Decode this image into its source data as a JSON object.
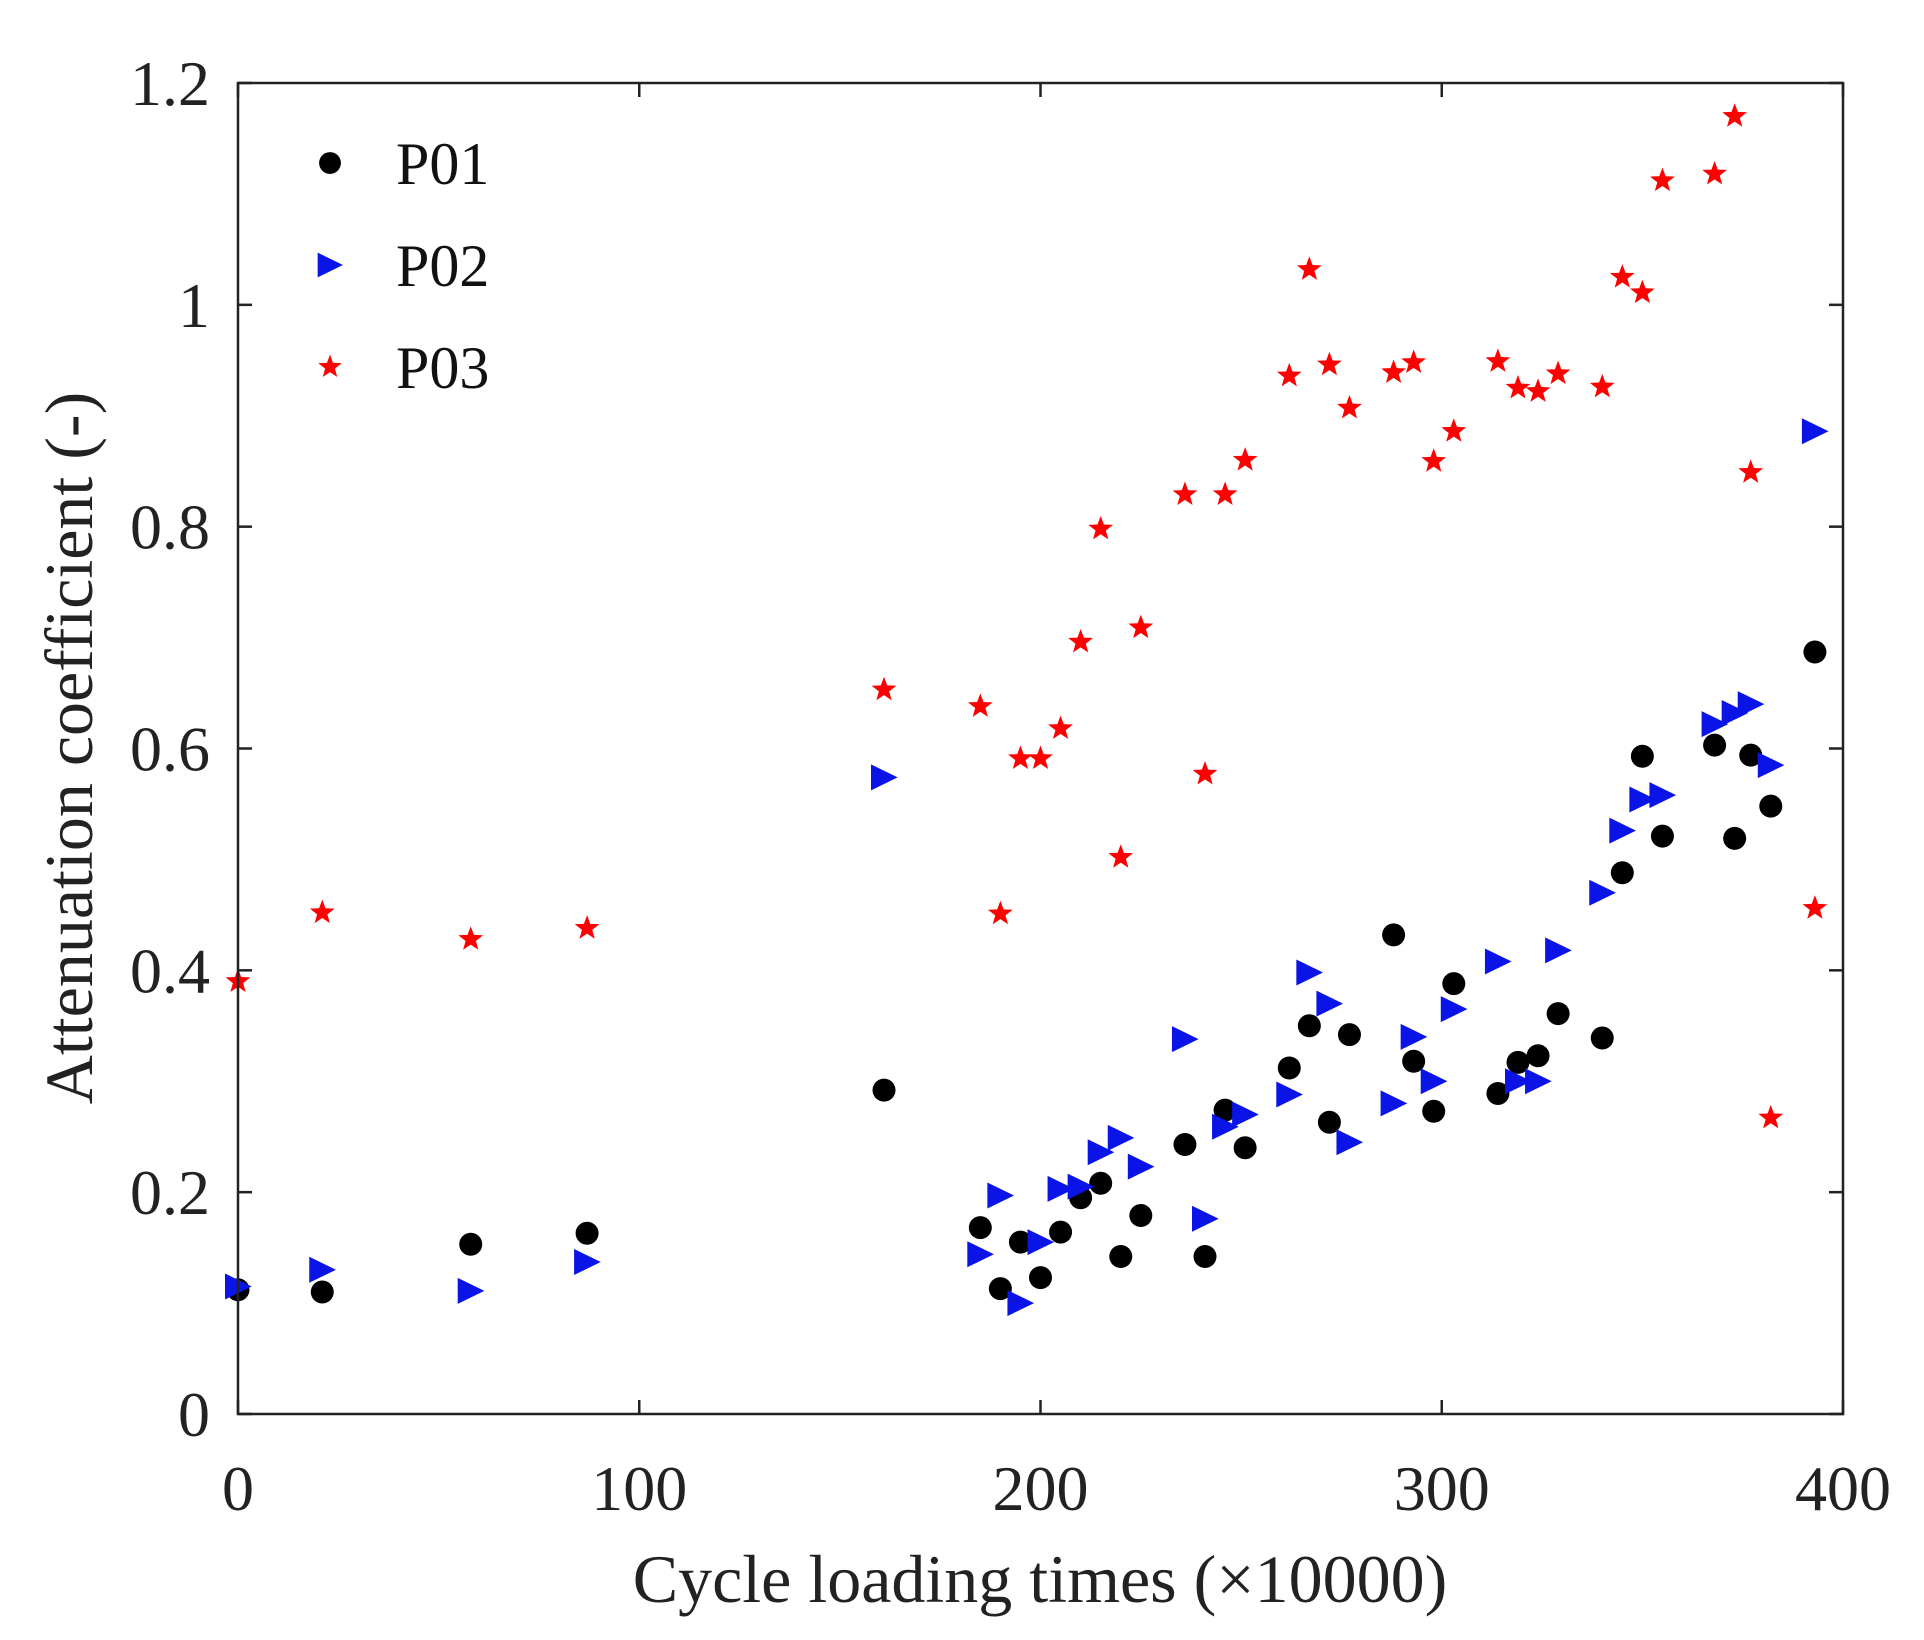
{
  "chart_data": {
    "type": "scatter",
    "xlabel": "Cycle loading times (×10000)",
    "ylabel": "Attenuation coefficient (-)",
    "xlim": [
      0,
      400
    ],
    "ylim": [
      0,
      1.2
    ],
    "xticks": [
      0,
      100,
      200,
      300,
      400
    ],
    "yticks": [
      0,
      0.2,
      0.4,
      0.6,
      0.8,
      1,
      1.2
    ],
    "xtick_labels": [
      "0",
      "100",
      "200",
      "300",
      "400"
    ],
    "ytick_labels": [
      "0",
      "0.2",
      "0.4",
      "0.6",
      "0.8",
      "1",
      "1.2"
    ],
    "grid": false,
    "legend_position": "top-left",
    "series": [
      {
        "name": "P01",
        "marker": "circle",
        "color": "#000000",
        "points": [
          [
            0,
            0.112
          ],
          [
            21,
            0.11
          ],
          [
            58,
            0.153
          ],
          [
            87,
            0.163
          ],
          [
            161,
            0.292
          ],
          [
            185,
            0.168
          ],
          [
            190,
            0.113
          ],
          [
            195,
            0.155
          ],
          [
            200,
            0.123
          ],
          [
            205,
            0.164
          ],
          [
            210,
            0.195
          ],
          [
            215,
            0.208
          ],
          [
            220,
            0.142
          ],
          [
            225,
            0.179
          ],
          [
            236,
            0.243
          ],
          [
            241,
            0.142
          ],
          [
            246,
            0.274
          ],
          [
            251,
            0.24
          ],
          [
            262,
            0.312
          ],
          [
            267,
            0.35
          ],
          [
            272,
            0.263
          ],
          [
            277,
            0.342
          ],
          [
            288,
            0.432
          ],
          [
            293,
            0.318
          ],
          [
            298,
            0.273
          ],
          [
            303,
            0.388
          ],
          [
            314,
            0.289
          ],
          [
            319,
            0.317
          ],
          [
            324,
            0.323
          ],
          [
            329,
            0.361
          ],
          [
            340,
            0.339
          ],
          [
            345,
            0.488
          ],
          [
            350,
            0.593
          ],
          [
            355,
            0.521
          ],
          [
            368,
            0.603
          ],
          [
            373,
            0.519
          ],
          [
            377,
            0.594
          ],
          [
            382,
            0.548
          ],
          [
            393,
            0.687
          ]
        ]
      },
      {
        "name": "P02",
        "marker": "triangle-right",
        "color": "#0a14e6",
        "points": [
          [
            0,
            0.115
          ],
          [
            21,
            0.13
          ],
          [
            58,
            0.111
          ],
          [
            87,
            0.137
          ],
          [
            161,
            0.574
          ],
          [
            185,
            0.144
          ],
          [
            190,
            0.197
          ],
          [
            195,
            0.1
          ],
          [
            200,
            0.155
          ],
          [
            205,
            0.203
          ],
          [
            210,
            0.205
          ],
          [
            215,
            0.236
          ],
          [
            220,
            0.249
          ],
          [
            225,
            0.223
          ],
          [
            236,
            0.338
          ],
          [
            241,
            0.176
          ],
          [
            246,
            0.259
          ],
          [
            251,
            0.27
          ],
          [
            262,
            0.288
          ],
          [
            267,
            0.398
          ],
          [
            272,
            0.37
          ],
          [
            277,
            0.245
          ],
          [
            288,
            0.28
          ],
          [
            293,
            0.34
          ],
          [
            298,
            0.3
          ],
          [
            303,
            0.365
          ],
          [
            314,
            0.408
          ],
          [
            319,
            0.3
          ],
          [
            324,
            0.3
          ],
          [
            329,
            0.418
          ],
          [
            340,
            0.47
          ],
          [
            345,
            0.526
          ],
          [
            350,
            0.554
          ],
          [
            355,
            0.558
          ],
          [
            368,
            0.622
          ],
          [
            373,
            0.632
          ],
          [
            377,
            0.64
          ],
          [
            382,
            0.585
          ],
          [
            393,
            0.886
          ]
        ]
      },
      {
        "name": "P03",
        "marker": "star",
        "color": "#ff0000",
        "points": [
          [
            0,
            0.39
          ],
          [
            21,
            0.452
          ],
          [
            58,
            0.428
          ],
          [
            87,
            0.438
          ],
          [
            161,
            0.653
          ],
          [
            185,
            0.638
          ],
          [
            190,
            0.451
          ],
          [
            195,
            0.591
          ],
          [
            200,
            0.591
          ],
          [
            205,
            0.618
          ],
          [
            210,
            0.696
          ],
          [
            215,
            0.798
          ],
          [
            220,
            0.502
          ],
          [
            225,
            0.709
          ],
          [
            236,
            0.829
          ],
          [
            241,
            0.577
          ],
          [
            246,
            0.829
          ],
          [
            251,
            0.86
          ],
          [
            262,
            0.936
          ],
          [
            267,
            1.032
          ],
          [
            272,
            0.946
          ],
          [
            277,
            0.907
          ],
          [
            288,
            0.939
          ],
          [
            293,
            0.948
          ],
          [
            298,
            0.859
          ],
          [
            303,
            0.886
          ],
          [
            314,
            0.949
          ],
          [
            319,
            0.925
          ],
          [
            324,
            0.922
          ],
          [
            329,
            0.938
          ],
          [
            340,
            0.926
          ],
          [
            345,
            1.025
          ],
          [
            350,
            1.011
          ],
          [
            355,
            1.112
          ],
          [
            368,
            1.118
          ],
          [
            373,
            1.17
          ],
          [
            377,
            0.849
          ],
          [
            382,
            0.267
          ],
          [
            393,
            0.456
          ]
        ]
      }
    ]
  }
}
